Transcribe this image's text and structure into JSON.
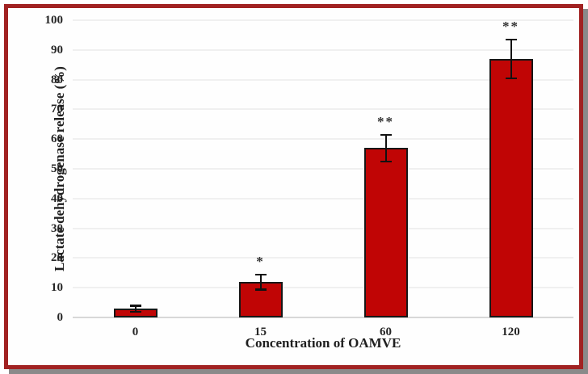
{
  "frame": {
    "border_color": "#a12222",
    "shadow_color": "#8a8a8a",
    "background": "#fefefe"
  },
  "chart_data": {
    "type": "bar",
    "title": "",
    "categories": [
      "0",
      "15",
      "60",
      "120"
    ],
    "values": [
      3,
      12,
      57,
      87
    ],
    "errors": [
      1,
      2.5,
      4.5,
      6.5
    ],
    "annotations": [
      "",
      "*",
      "**",
      "**"
    ],
    "xlabel": "Concentration of OAMVE",
    "ylabel": "Lactate dehydrogenase release (%)",
    "ylim": [
      0,
      100
    ],
    "yticks": [
      0,
      10,
      20,
      30,
      40,
      50,
      60,
      70,
      80,
      90,
      100
    ],
    "grid": true,
    "legend": "none",
    "bar_color": "#c00505",
    "bar_border_color": "#171717",
    "error_bar_color": "#111111",
    "gridline_color": "#f0f0f0",
    "axis_line_color": "#d8d8d8",
    "tick_label_color": "#262626",
    "annotation_color": "#333333"
  }
}
